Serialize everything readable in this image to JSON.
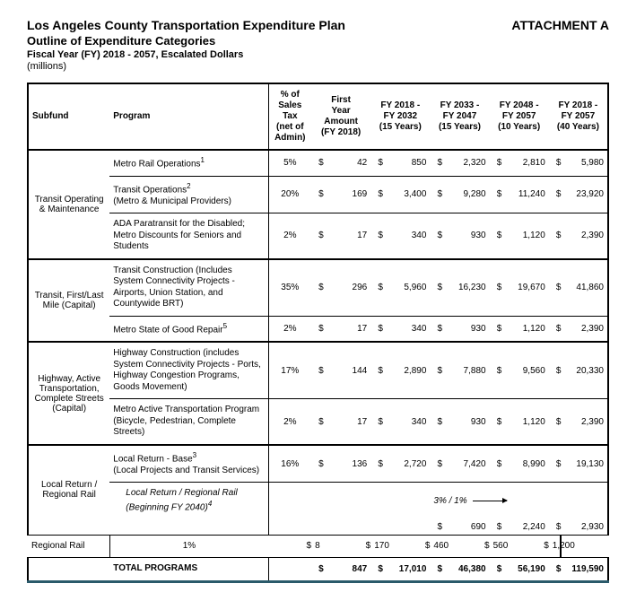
{
  "header": {
    "title": "Los Angeles County Transportation Expenditure Plan",
    "subtitle": "Outline of Expenditure Categories",
    "fiscal": "Fiscal Year (FY) 2018 - 2057, Escalated Dollars",
    "units": "(millions)",
    "attachment": "ATTACHMENT A"
  },
  "columns": {
    "subfund": "Subfund",
    "program": "Program",
    "pct": "% of Sales Tax (net of Admin)",
    "first": "First Year Amount (FY 2018)",
    "p1": "FY 2018 - FY 2032 (15 Years)",
    "p2": "FY 2033 - FY 2047 (15 Years)",
    "p3": "FY 2048 - FY 2057 (10 Years)",
    "p4": "FY 2018 - FY 2057 (40 Years)"
  },
  "groups": [
    {
      "subfund": "Transit Operating & Maintenance",
      "rows": [
        {
          "program": "Metro Rail Operations",
          "sup": "1",
          "pct": "5%",
          "first": "42",
          "p1": "850",
          "p2": "2,320",
          "p3": "2,810",
          "p4": "5,980"
        },
        {
          "program": "Transit Operations",
          "sup": "2",
          "sub": "(Metro & Municipal Providers)",
          "pct": "20%",
          "first": "169",
          "p1": "3,400",
          "p2": "9,280",
          "p3": "11,240",
          "p4": "23,920"
        },
        {
          "program": "ADA Paratransit for the Disabled; Metro Discounts for Seniors and Students",
          "pct": "2%",
          "first": "17",
          "p1": "340",
          "p2": "930",
          "p3": "1,120",
          "p4": "2,390"
        }
      ]
    },
    {
      "subfund": "Transit, First/Last Mile (Capital)",
      "rows": [
        {
          "program": "Transit Construction (Includes System Connectivity Projects - Airports, Union Station, and Countywide BRT)",
          "pct": "35%",
          "first": "296",
          "p1": "5,960",
          "p2": "16,230",
          "p3": "19,670",
          "p4": "41,860"
        },
        {
          "program": "Metro State of Good Repair",
          "sup": "5",
          "pct": "2%",
          "first": "17",
          "p1": "340",
          "p2": "930",
          "p3": "1,120",
          "p4": "2,390"
        }
      ]
    },
    {
      "subfund": "Highway, Active Transportation, Complete Streets (Capital)",
      "rows": [
        {
          "program": "Highway Construction (includes System Connectivity Projects - Ports, Highway Congestion Programs, Goods Movement)",
          "pct": "17%",
          "first": "144",
          "p1": "2,890",
          "p2": "7,880",
          "p3": "9,560",
          "p4": "20,330"
        },
        {
          "program": "Metro Active Transportation Program (Bicycle, Pedestrian, Complete Streets)",
          "pct": "2%",
          "first": "17",
          "p1": "340",
          "p2": "930",
          "p3": "1,120",
          "p4": "2,390"
        }
      ]
    },
    {
      "subfund": "Local Return / Regional Rail",
      "rows": [
        {
          "program": "Local Return - Base",
          "sup": "3",
          "sub": "(Local Projects and Transit Services)",
          "pct": "16%",
          "first": "136",
          "p1": "2,720",
          "p2": "7,420",
          "p3": "8,990",
          "p4": "19,130"
        },
        {
          "program": "Local Return / Regional Rail (Beginning FY 2040)",
          "sup": "4",
          "italic": true,
          "pct": "",
          "first": "",
          "p1": "",
          "p2_label": "3% / 1%",
          "p2": "690",
          "p3": "2,240",
          "p4": "2,930",
          "arrow": true
        },
        {
          "program": "Regional Rail",
          "pct": "1%",
          "first": "8",
          "p1": "170",
          "p2": "460",
          "p3": "560",
          "p4": "1,200"
        }
      ]
    }
  ],
  "total": {
    "label": "TOTAL PROGRAMS",
    "first": "847",
    "p1": "17,010",
    "p2": "46,380",
    "p3": "56,190",
    "p4": "119,590"
  },
  "currency": "$"
}
